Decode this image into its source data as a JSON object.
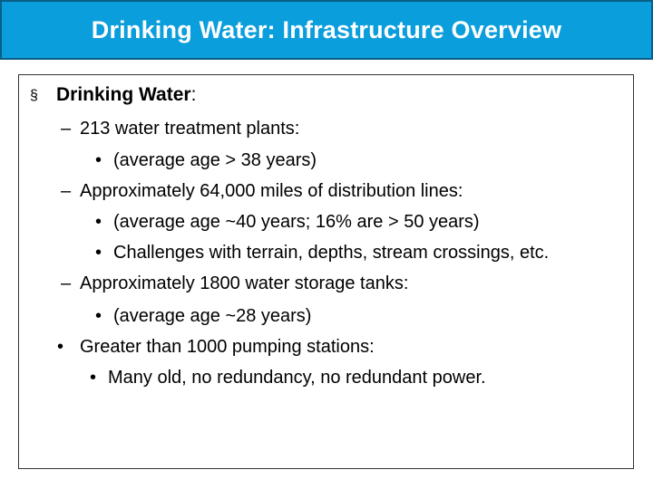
{
  "title": "Drinking Water: Infrastructure Overview",
  "heading": {
    "marker": "§",
    "label": "Drinking Water",
    "suffix": ":"
  },
  "items": [
    {
      "marker": "–",
      "text": "213 water treatment plants:"
    },
    {
      "marker": "•",
      "text": "(average age > 38 years)"
    },
    {
      "marker": "–",
      "text": "Approximately 64,000 miles of distribution lines:"
    },
    {
      "marker": "•",
      "text": "(average age  ~40 years; 16% are > 50 years)"
    },
    {
      "marker": "•",
      "text": "Challenges with terrain, depths, stream crossings, etc."
    },
    {
      "marker": "–",
      "text": "Approximately 1800 water storage tanks:"
    },
    {
      "marker": "•",
      "text": "(average age  ~28 years)"
    },
    {
      "marker": "•",
      "text": "Greater than 1000 pumping stations:"
    },
    {
      "marker": "•",
      "text": "Many old, no redundancy, no redundant power."
    }
  ]
}
